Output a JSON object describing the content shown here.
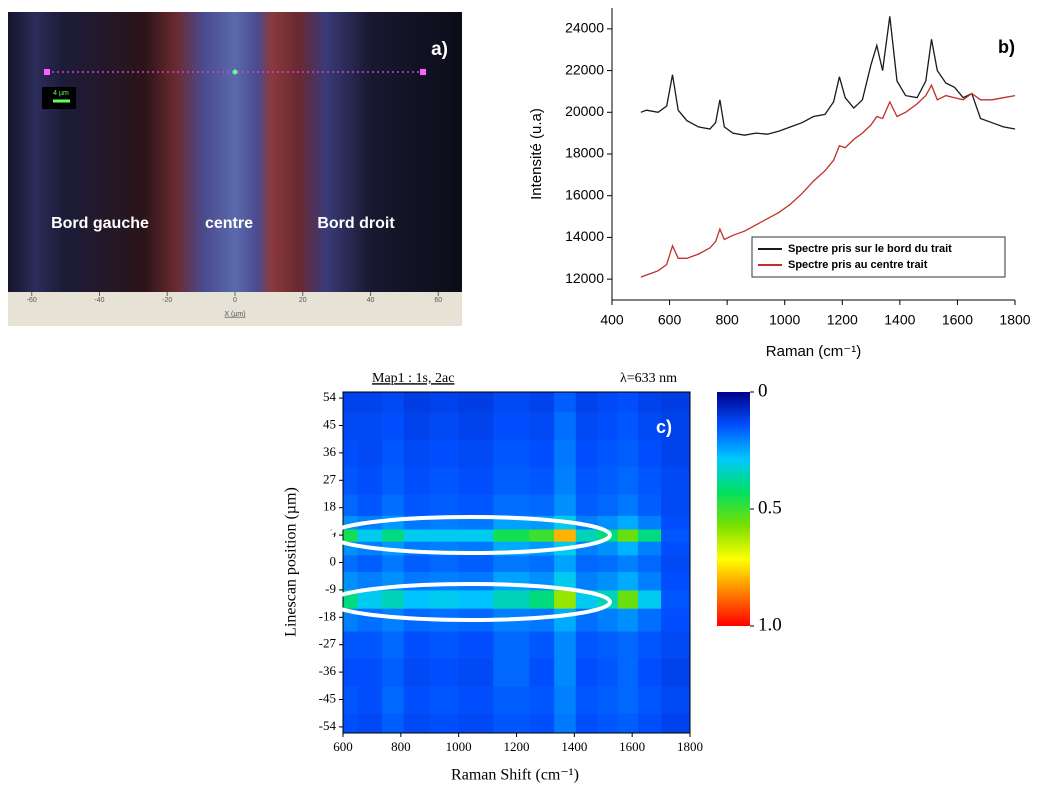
{
  "chart_data": [
    {
      "type": "image",
      "title": "a)",
      "xlabel": "X (µm)",
      "xlim": [
        -67,
        67
      ],
      "xticks": [
        -60,
        -40,
        -20,
        0,
        20,
        40,
        60
      ],
      "annotations": [
        "Bord gauche",
        "centre",
        "Bord droit"
      ],
      "scale_bar": "4 µm"
    },
    {
      "type": "line",
      "title": "b)",
      "xlabel": "Raman (cm⁻¹)",
      "ylabel": "Intensité (u.a)",
      "x": [
        500,
        520,
        560,
        590,
        610,
        630,
        660,
        700,
        740,
        760,
        775,
        790,
        820,
        860,
        900,
        940,
        980,
        1020,
        1060,
        1100,
        1140,
        1170,
        1190,
        1210,
        1240,
        1270,
        1300,
        1320,
        1340,
        1365,
        1390,
        1420,
        1460,
        1490,
        1510,
        1530,
        1560,
        1590,
        1620,
        1650,
        1680,
        1720,
        1760,
        1800
      ],
      "series": [
        {
          "name": "Spectre pris sur le bord du trait",
          "color": "#1a1a1a",
          "values": [
            20000,
            20100,
            20000,
            20300,
            21800,
            20100,
            19600,
            19300,
            19200,
            19500,
            20600,
            19300,
            19000,
            18900,
            19000,
            18950,
            19100,
            19300,
            19500,
            19800,
            19900,
            20500,
            21700,
            20700,
            20200,
            20600,
            22300,
            23200,
            22000,
            24600,
            21500,
            20800,
            20700,
            21500,
            23500,
            22000,
            21400,
            21200,
            20700,
            20900,
            19700,
            19500,
            19300,
            19200
          ]
        },
        {
          "name": "Spectre pris au centre trait",
          "color": "#c0302a",
          "values": [
            12100,
            12200,
            12400,
            12700,
            13600,
            13000,
            13000,
            13200,
            13500,
            13800,
            14400,
            13900,
            14100,
            14300,
            14600,
            14900,
            15200,
            15600,
            16100,
            16700,
            17200,
            17700,
            18400,
            18300,
            18700,
            19000,
            19400,
            19800,
            19700,
            20500,
            19800,
            20000,
            20400,
            20800,
            21300,
            20600,
            20800,
            20700,
            20600,
            20900,
            20600,
            20600,
            20700,
            20800
          ]
        }
      ],
      "xlim": [
        400,
        1800
      ],
      "xticks": [
        400,
        600,
        800,
        1000,
        1200,
        1400,
        1600,
        1800
      ],
      "ylim": [
        11000,
        25000
      ],
      "yticks": [
        12000,
        14000,
        16000,
        18000,
        20000,
        22000,
        24000
      ],
      "legend": "lower right"
    },
    {
      "type": "heatmap",
      "title": "c)",
      "subtitle": "Map1 : 1s, 2ac",
      "annotations": [
        "λ=633 nm"
      ],
      "xlabel": "Raman Shift (cm⁻¹)",
      "ylabel": "Linescan position (µm)",
      "x": [
        600,
        700,
        770,
        850,
        950,
        1050,
        1190,
        1300,
        1360,
        1450,
        1510,
        1590,
        1650,
        1750
      ],
      "y": [
        -54,
        -45,
        -36,
        -27,
        -18,
        -12,
        -6,
        0,
        5,
        9,
        13,
        18,
        27,
        36,
        45,
        54
      ],
      "z": [
        [
          0.14,
          0.13,
          0.16,
          0.13,
          0.14,
          0.13,
          0.15,
          0.14,
          0.19,
          0.14,
          0.15,
          0.16,
          0.14,
          0.12
        ],
        [
          0.15,
          0.14,
          0.17,
          0.14,
          0.15,
          0.14,
          0.16,
          0.15,
          0.2,
          0.15,
          0.16,
          0.17,
          0.15,
          0.13
        ],
        [
          0.14,
          0.14,
          0.16,
          0.13,
          0.14,
          0.13,
          0.17,
          0.14,
          0.21,
          0.14,
          0.15,
          0.17,
          0.14,
          0.12
        ],
        [
          0.15,
          0.15,
          0.17,
          0.14,
          0.15,
          0.14,
          0.17,
          0.15,
          0.21,
          0.15,
          0.16,
          0.17,
          0.15,
          0.13
        ],
        [
          0.2,
          0.18,
          0.2,
          0.17,
          0.18,
          0.17,
          0.2,
          0.19,
          0.25,
          0.18,
          0.2,
          0.22,
          0.18,
          0.14
        ],
        [
          0.4,
          0.3,
          0.35,
          0.28,
          0.3,
          0.28,
          0.35,
          0.4,
          0.6,
          0.3,
          0.35,
          0.55,
          0.3,
          0.15
        ],
        [
          0.22,
          0.2,
          0.22,
          0.19,
          0.2,
          0.19,
          0.24,
          0.22,
          0.3,
          0.2,
          0.22,
          0.25,
          0.2,
          0.14
        ],
        [
          0.18,
          0.16,
          0.19,
          0.16,
          0.17,
          0.16,
          0.19,
          0.18,
          0.24,
          0.17,
          0.18,
          0.2,
          0.17,
          0.13
        ],
        [
          0.22,
          0.2,
          0.23,
          0.19,
          0.2,
          0.19,
          0.25,
          0.23,
          0.3,
          0.2,
          0.22,
          0.26,
          0.2,
          0.14
        ],
        [
          0.45,
          0.3,
          0.4,
          0.3,
          0.3,
          0.3,
          0.45,
          0.5,
          0.8,
          0.35,
          0.4,
          0.55,
          0.4,
          0.15
        ],
        [
          0.22,
          0.2,
          0.23,
          0.19,
          0.2,
          0.19,
          0.24,
          0.23,
          0.3,
          0.2,
          0.22,
          0.25,
          0.2,
          0.14
        ],
        [
          0.17,
          0.15,
          0.18,
          0.15,
          0.16,
          0.15,
          0.18,
          0.17,
          0.22,
          0.16,
          0.17,
          0.19,
          0.16,
          0.13
        ],
        [
          0.15,
          0.14,
          0.16,
          0.14,
          0.15,
          0.14,
          0.16,
          0.15,
          0.2,
          0.15,
          0.16,
          0.17,
          0.15,
          0.13
        ],
        [
          0.14,
          0.13,
          0.15,
          0.13,
          0.14,
          0.13,
          0.15,
          0.14,
          0.19,
          0.14,
          0.15,
          0.16,
          0.14,
          0.12
        ],
        [
          0.13,
          0.13,
          0.14,
          0.12,
          0.13,
          0.12,
          0.14,
          0.13,
          0.18,
          0.13,
          0.14,
          0.15,
          0.13,
          0.12
        ],
        [
          0.12,
          0.12,
          0.13,
          0.11,
          0.12,
          0.11,
          0.13,
          0.12,
          0.16,
          0.12,
          0.13,
          0.14,
          0.12,
          0.11
        ]
      ],
      "xlim": [
        600,
        1800
      ],
      "xticks": [
        600,
        800,
        1000,
        1200,
        1400,
        1600,
        1800
      ],
      "ylim": [
        -56,
        56
      ],
      "yticks": [
        -54,
        -45,
        -36,
        -27,
        -18,
        -9,
        0,
        9,
        18,
        27,
        36,
        45,
        54
      ],
      "zlim": [
        0,
        1
      ],
      "zticks": [
        0,
        0.5,
        {
          "value": 1,
          "label": "1.0"
        }
      ],
      "colorscale": [
        "#00008b",
        "#0050ff",
        "#00c8ff",
        "#00e060",
        "#7ae000",
        "#ffff00",
        "#ff8000",
        "#ff0000"
      ]
    }
  ]
}
